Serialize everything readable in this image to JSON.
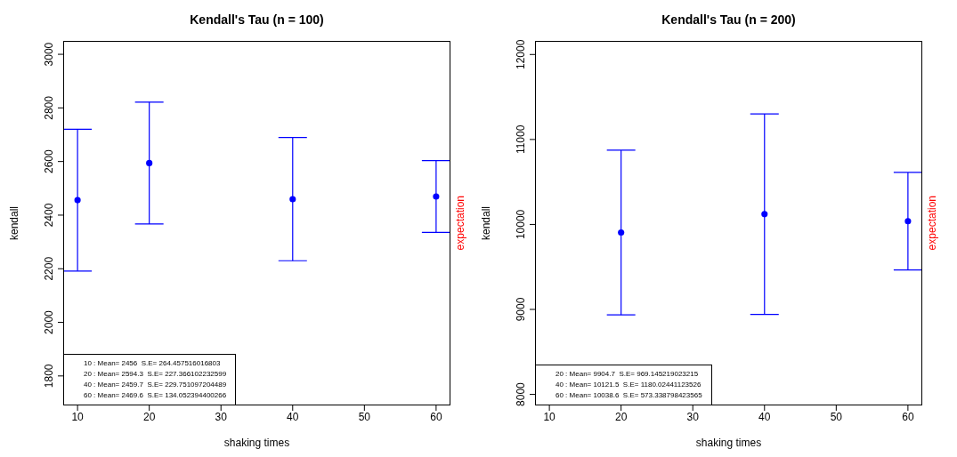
{
  "chart_data": [
    {
      "type": "scatter",
      "title": "Kendall's Tau (n = 100)",
      "xlabel": "shaking times",
      "ylabel": "kendall",
      "y2label": "expectation",
      "x": [
        10,
        20,
        40,
        60
      ],
      "color": "#0000ff",
      "values": [
        2456,
        2594.3,
        2459.7,
        2469.6
      ],
      "errors": [
        264.5,
        227.4,
        229.8,
        134.1
      ],
      "xlim": [
        8,
        62
      ],
      "xticks": [
        10,
        20,
        30,
        40,
        50,
        60
      ],
      "ylim": [
        1690,
        3050
      ],
      "yticks": [
        1800,
        2000,
        2200,
        2400,
        2600,
        2800,
        3000
      ],
      "marker": "circle",
      "grid": false,
      "legend": false,
      "annotations": [
        "10 : Mean= 2456  S.E= 264.457516016803",
        "20 : Mean= 2594.3  S.E= 227.366102232599",
        "40 : Mean= 2459.7  S.E= 229.751097204489",
        "60 : Mean= 2469.6  S.E= 134.052394400266"
      ]
    },
    {
      "type": "scatter",
      "title": "Kendall's Tau (n = 200)",
      "xlabel": "shaking times",
      "ylabel": "kendall",
      "y2label": "expectation",
      "x": [
        20,
        40,
        60
      ],
      "color": "#0000ff",
      "values": [
        9904.7,
        10121.5,
        10038.6
      ],
      "errors": [
        969.1,
        1180.0,
        573.3
      ],
      "xlim": [
        8,
        62
      ],
      "xticks": [
        10,
        20,
        30,
        40,
        50,
        60
      ],
      "ylim": [
        7870,
        12160
      ],
      "yticks": [
        8000,
        9000,
        10000,
        11000,
        12000
      ],
      "marker": "circle",
      "grid": false,
      "legend": false,
      "annotations": [
        "20 : Mean= 9904.7  S.E= 969.145219023215",
        "40 : Mean= 10121.5  S.E= 1180.02441123526",
        "60 : Mean= 10038.6  S.E= 573.338798423565"
      ]
    }
  ]
}
